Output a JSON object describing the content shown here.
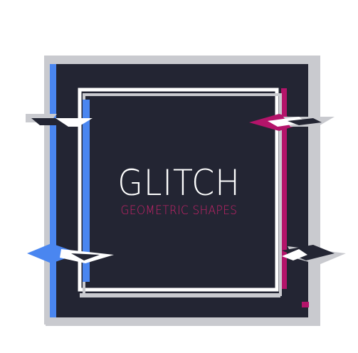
{
  "artwork": {
    "title": "GLITCH",
    "subtitle": "GEOMETRIC SHAPES"
  },
  "colors": {
    "background": "#ffffff",
    "dark_panel": "#232533",
    "light_frame": "#c9cacf",
    "blue_accent": "#4a86f0",
    "magenta_accent": "#b4146a",
    "title_text": "#ffffff",
    "subtitle_text": "#c8236a"
  }
}
